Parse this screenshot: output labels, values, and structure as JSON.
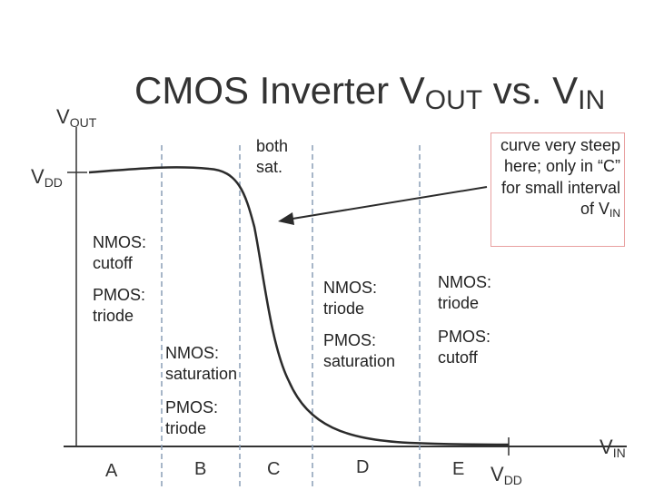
{
  "title": {
    "main": "CMOS Inverter V",
    "sub1": "OUT",
    "mid": " vs. V",
    "sub2": "IN"
  },
  "axes": {
    "y_label_main": "V",
    "y_label_sub": "OUT",
    "vdd_y_main": "V",
    "vdd_y_sub": "DD",
    "x_label_main": "V",
    "x_label_sub": "IN",
    "vdd_x_main": "V",
    "vdd_x_sub": "DD"
  },
  "annotations": {
    "both_sat": [
      "both",
      "sat."
    ],
    "callout": [
      "curve very steep",
      "here; only in “C”",
      "for small interval",
      "of V"
    ],
    "callout_sub": "IN"
  },
  "regions": {
    "A": {
      "nmos": [
        "NMOS:",
        "cutoff"
      ],
      "pmos": [
        "PMOS:",
        "triode"
      ]
    },
    "B": {
      "nmos": [
        "NMOS:",
        "saturation"
      ],
      "pmos": [
        "PMOS:",
        "triode"
      ]
    },
    "C": {
      "nmos": [
        "NMOS:",
        "triode"
      ],
      "pmos": [
        "PMOS:",
        "saturation"
      ]
    },
    "D": {
      "nmos": [
        "NMOS:",
        "triode"
      ],
      "pmos": [
        "PMOS:",
        "cutoff"
      ]
    }
  },
  "region_letters": [
    "A",
    "B",
    "C",
    "D",
    "E"
  ],
  "colors": {
    "curve": "#2b2b2b",
    "axis": "#333333",
    "divider": "#8a9db5",
    "arrow": "#2b2b2b",
    "callout_border": "#e8a0a0"
  }
}
